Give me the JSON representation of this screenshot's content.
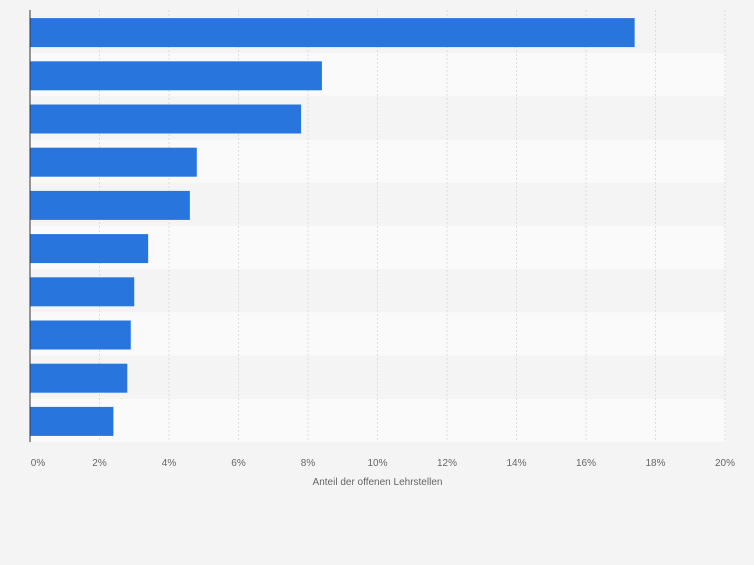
{
  "chart_data": {
    "type": "bar",
    "orientation": "horizontal",
    "categories": [
      "",
      "",
      "",
      "",
      "",
      "",
      "",
      "",
      "",
      ""
    ],
    "values": [
      17.4,
      8.4,
      7.8,
      4.8,
      4.6,
      3.4,
      3.0,
      2.9,
      2.8,
      2.4
    ],
    "xlabel": "Anteil der offenen Lehrstellen",
    "ylabel": "",
    "xlim": [
      0,
      20
    ],
    "xticks": [
      "0%",
      "2%",
      "4%",
      "6%",
      "8%",
      "10%",
      "12%",
      "14%",
      "16%",
      "18%",
      "20%"
    ],
    "grid": true,
    "bar_color": "#2876dd"
  }
}
